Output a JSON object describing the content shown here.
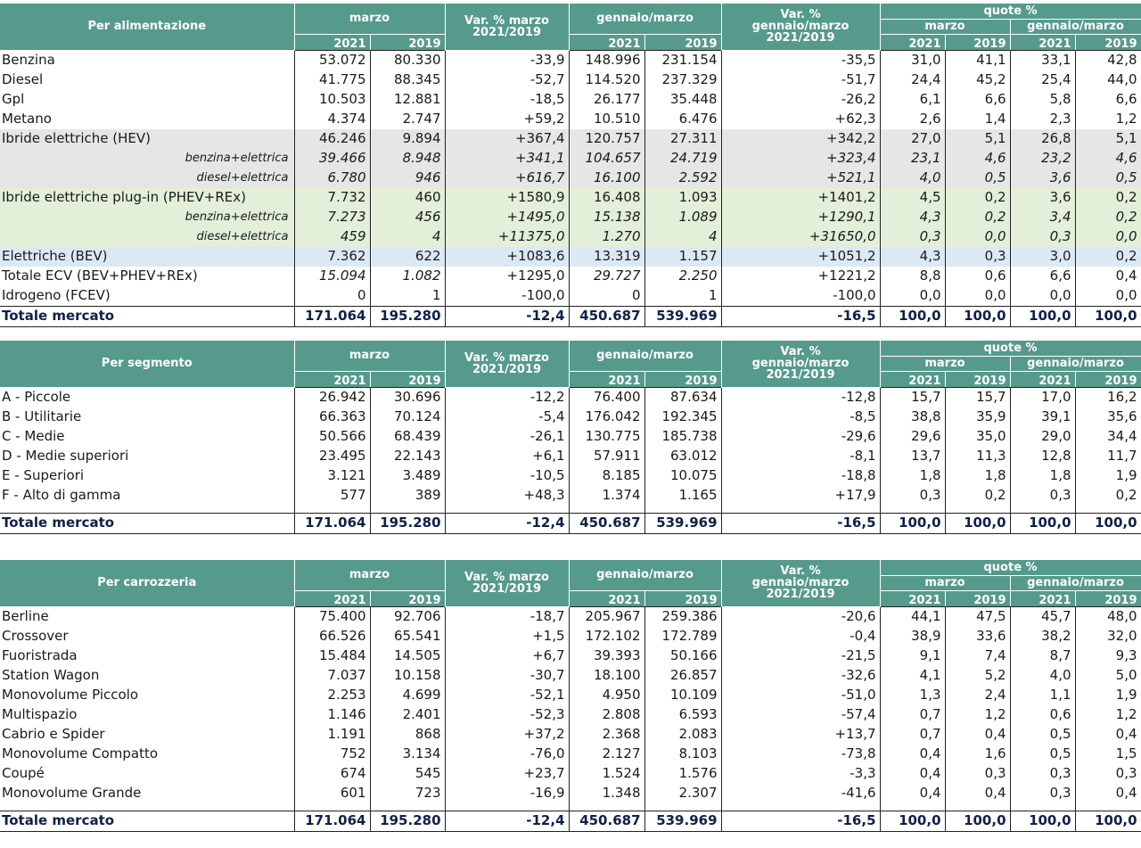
{
  "headers": {
    "march": "marzo",
    "var_march_l1": "Var. % marzo",
    "var_march_l2": "2021/2019",
    "jan_march": "gennaio/marzo",
    "var_jm_l1": "Var. %",
    "var_jm_l2": "gennaio/marzo",
    "var_jm_l3": "2021/2019",
    "shares": "quote %",
    "y2021": "2021",
    "y2019": "2019"
  },
  "tables": [
    {
      "title": "Per alimentazione",
      "rows": [
        {
          "label": "Benzina",
          "m21": "53.072",
          "m19": "80.330",
          "vm": "-33,9",
          "j21": "148.996",
          "j19": "231.154",
          "vj": "-35,5",
          "qm21": "31,0",
          "qm19": "41,1",
          "qj21": "33,1",
          "qj19": "42,8",
          "style": ""
        },
        {
          "label": "Diesel",
          "m21": "41.775",
          "m19": "88.345",
          "vm": "-52,7",
          "j21": "114.520",
          "j19": "237.329",
          "vj": "-51,7",
          "qm21": "24,4",
          "qm19": "45,2",
          "qj21": "25,4",
          "qj19": "44,0",
          "style": ""
        },
        {
          "label": "Gpl",
          "m21": "10.503",
          "m19": "12.881",
          "vm": "-18,5",
          "j21": "26.177",
          "j19": "35.448",
          "vj": "-26,2",
          "qm21": "6,1",
          "qm19": "6,6",
          "qj21": "5,8",
          "qj19": "6,6",
          "style": ""
        },
        {
          "label": "Metano",
          "m21": "4.374",
          "m19": "2.747",
          "vm": "+59,2",
          "j21": "10.510",
          "j19": "6.476",
          "vj": "+62,3",
          "qm21": "2,6",
          "qm19": "1,4",
          "qj21": "2,3",
          "qj19": "1,2",
          "style": ""
        },
        {
          "label": "Ibride elettriche (HEV)",
          "m21": "46.246",
          "m19": "9.894",
          "vm": "+367,4",
          "j21": "120.757",
          "j19": "27.311",
          "vj": "+342,2",
          "qm21": "27,0",
          "qm19": "5,1",
          "qj21": "26,8",
          "qj19": "5,1",
          "style": "gray"
        },
        {
          "label": "benzina+elettrica",
          "m21": "39.466",
          "m19": "8.948",
          "vm": "+341,1",
          "j21": "104.657",
          "j19": "24.719",
          "vj": "+323,4",
          "qm21": "23,1",
          "qm19": "4,6",
          "qj21": "23,2",
          "qj19": "4,6",
          "style": "gray italic sub"
        },
        {
          "label": "diesel+elettrica",
          "m21": "6.780",
          "m19": "946",
          "vm": "+616,7",
          "j21": "16.100",
          "j19": "2.592",
          "vj": "+521,1",
          "qm21": "4,0",
          "qm19": "0,5",
          "qj21": "3,6",
          "qj19": "0,5",
          "style": "gray italic sub"
        },
        {
          "label": "Ibride elettriche plug-in (PHEV+REx)",
          "m21": "7.732",
          "m19": "460",
          "vm": "+1580,9",
          "j21": "16.408",
          "j19": "1.093",
          "vj": "+1401,2",
          "qm21": "4,5",
          "qm19": "0,2",
          "qj21": "3,6",
          "qj19": "0,2",
          "style": "green"
        },
        {
          "label": "benzina+elettrica",
          "m21": "7.273",
          "m19": "456",
          "vm": "+1495,0",
          "j21": "15.138",
          "j19": "1.089",
          "vj": "+1290,1",
          "qm21": "4,3",
          "qm19": "0,2",
          "qj21": "3,4",
          "qj19": "0,2",
          "style": "green italic sub"
        },
        {
          "label": "diesel+elettrica",
          "m21": "459",
          "m19": "4",
          "vm": "+11375,0",
          "j21": "1.270",
          "j19": "4",
          "vj": "+31650,0",
          "qm21": "0,3",
          "qm19": "0,0",
          "qj21": "0,3",
          "qj19": "0,0",
          "style": "green italic sub"
        },
        {
          "label": "Elettriche (BEV)",
          "m21": "7.362",
          "m19": "622",
          "vm": "+1083,6",
          "j21": "13.319",
          "j19": "1.157",
          "vj": "+1051,2",
          "qm21": "4,3",
          "qm19": "0,3",
          "qj21": "3,0",
          "qj19": "0,2",
          "style": "blue"
        },
        {
          "label": "Totale ECV (BEV+PHEV+REx)",
          "m21": "15.094",
          "m19": "1.082",
          "vm": "+1295,0",
          "j21": "29.727",
          "j19": "2.250",
          "vj": "+1221,2",
          "qm21": "8,8",
          "qm19": "0,6",
          "qj21": "6,6",
          "qj19": "0,4",
          "style": "ecv"
        },
        {
          "label": "Idrogeno (FCEV)",
          "m21": "0",
          "m19": "1",
          "vm": "-100,0",
          "j21": "0",
          "j19": "1",
          "vj": "-100,0",
          "qm21": "0,0",
          "qm19": "0,0",
          "qj21": "0,0",
          "qj19": "0,0",
          "style": ""
        },
        {
          "label": "Totale mercato",
          "m21": "171.064",
          "m19": "195.280",
          "vm": "-12,4",
          "j21": "450.687",
          "j19": "539.969",
          "vj": "-16,5",
          "qm21": "100,0",
          "qm19": "100,0",
          "qj21": "100,0",
          "qj19": "100,0",
          "style": "bold"
        }
      ]
    },
    {
      "title": "Per segmento",
      "rows": [
        {
          "label": "A - Piccole",
          "m21": "26.942",
          "m19": "30.696",
          "vm": "-12,2",
          "j21": "76.400",
          "j19": "87.634",
          "vj": "-12,8",
          "qm21": "15,7",
          "qm19": "15,7",
          "qj21": "17,0",
          "qj19": "16,2",
          "style": ""
        },
        {
          "label": "B - Utilitarie",
          "m21": "66.363",
          "m19": "70.124",
          "vm": "-5,4",
          "j21": "176.042",
          "j19": "192.345",
          "vj": "-8,5",
          "qm21": "38,8",
          "qm19": "35,9",
          "qj21": "39,1",
          "qj19": "35,6",
          "style": ""
        },
        {
          "label": "C - Medie",
          "m21": "50.566",
          "m19": "68.439",
          "vm": "-26,1",
          "j21": "130.775",
          "j19": "185.738",
          "vj": "-29,6",
          "qm21": "29,6",
          "qm19": "35,0",
          "qj21": "29,0",
          "qj19": "34,4",
          "style": ""
        },
        {
          "label": "D - Medie superiori",
          "m21": "23.495",
          "m19": "22.143",
          "vm": "+6,1",
          "j21": "57.911",
          "j19": "63.012",
          "vj": "-8,1",
          "qm21": "13,7",
          "qm19": "11,3",
          "qj21": "12,8",
          "qj19": "11,7",
          "style": ""
        },
        {
          "label": "E - Superiori",
          "m21": "3.121",
          "m19": "3.489",
          "vm": "-10,5",
          "j21": "8.185",
          "j19": "10.075",
          "vj": "-18,8",
          "qm21": "1,8",
          "qm19": "1,8",
          "qj21": "1,8",
          "qj19": "1,9",
          "style": ""
        },
        {
          "label": "F - Alto di gamma",
          "m21": "577",
          "m19": "389",
          "vm": "+48,3",
          "j21": "1.374",
          "j19": "1.165",
          "vj": "+17,9",
          "qm21": "0,3",
          "qm19": "0,2",
          "qj21": "0,3",
          "qj19": "0,2",
          "style": ""
        },
        {
          "label": "Totale mercato",
          "m21": "171.064",
          "m19": "195.280",
          "vm": "-12,4",
          "j21": "450.687",
          "j19": "539.969",
          "vj": "-16,5",
          "qm21": "100,0",
          "qm19": "100,0",
          "qj21": "100,0",
          "qj19": "100,0",
          "style": "bold"
        }
      ]
    },
    {
      "title": "Per carrozzeria",
      "rows": [
        {
          "label": "Berline",
          "m21": "75.400",
          "m19": "92.706",
          "vm": "-18,7",
          "j21": "205.967",
          "j19": "259.386",
          "vj": "-20,6",
          "qm21": "44,1",
          "qm19": "47,5",
          "qj21": "45,7",
          "qj19": "48,0",
          "style": ""
        },
        {
          "label": "Crossover",
          "m21": "66.526",
          "m19": "65.541",
          "vm": "+1,5",
          "j21": "172.102",
          "j19": "172.789",
          "vj": "-0,4",
          "qm21": "38,9",
          "qm19": "33,6",
          "qj21": "38,2",
          "qj19": "32,0",
          "style": ""
        },
        {
          "label": "Fuoristrada",
          "m21": "15.484",
          "m19": "14.505",
          "vm": "+6,7",
          "j21": "39.393",
          "j19": "50.166",
          "vj": "-21,5",
          "qm21": "9,1",
          "qm19": "7,4",
          "qj21": "8,7",
          "qj19": "9,3",
          "style": ""
        },
        {
          "label": "Station Wagon",
          "m21": "7.037",
          "m19": "10.158",
          "vm": "-30,7",
          "j21": "18.100",
          "j19": "26.857",
          "vj": "-32,6",
          "qm21": "4,1",
          "qm19": "5,2",
          "qj21": "4,0",
          "qj19": "5,0",
          "style": ""
        },
        {
          "label": "Monovolume Piccolo",
          "m21": "2.253",
          "m19": "4.699",
          "vm": "-52,1",
          "j21": "4.950",
          "j19": "10.109",
          "vj": "-51,0",
          "qm21": "1,3",
          "qm19": "2,4",
          "qj21": "1,1",
          "qj19": "1,9",
          "style": ""
        },
        {
          "label": "Multispazio",
          "m21": "1.146",
          "m19": "2.401",
          "vm": "-52,3",
          "j21": "2.808",
          "j19": "6.593",
          "vj": "-57,4",
          "qm21": "0,7",
          "qm19": "1,2",
          "qj21": "0,6",
          "qj19": "1,2",
          "style": ""
        },
        {
          "label": "Cabrio e Spider",
          "m21": "1.191",
          "m19": "868",
          "vm": "+37,2",
          "j21": "2.368",
          "j19": "2.083",
          "vj": "+13,7",
          "qm21": "0,7",
          "qm19": "0,4",
          "qj21": "0,5",
          "qj19": "0,4",
          "style": ""
        },
        {
          "label": "Monovolume Compatto",
          "m21": "752",
          "m19": "3.134",
          "vm": "-76,0",
          "j21": "2.127",
          "j19": "8.103",
          "vj": "-73,8",
          "qm21": "0,4",
          "qm19": "1,6",
          "qj21": "0,5",
          "qj19": "1,5",
          "style": ""
        },
        {
          "label": "Coupé",
          "m21": "674",
          "m19": "545",
          "vm": "+23,7",
          "j21": "1.524",
          "j19": "1.576",
          "vj": "-3,3",
          "qm21": "0,4",
          "qm19": "0,3",
          "qj21": "0,3",
          "qj19": "0,3",
          "style": ""
        },
        {
          "label": "Monovolume Grande",
          "m21": "601",
          "m19": "723",
          "vm": "-16,9",
          "j21": "1.348",
          "j19": "2.307",
          "vj": "-41,6",
          "qm21": "0,4",
          "qm19": "0,4",
          "qj21": "0,3",
          "qj19": "0,4",
          "style": ""
        },
        {
          "label": "Totale mercato",
          "m21": "171.064",
          "m19": "195.280",
          "vm": "-12,4",
          "j21": "450.687",
          "j19": "539.969",
          "vj": "-16,5",
          "qm21": "100,0",
          "qm19": "100,0",
          "qj21": "100,0",
          "qj19": "100,0",
          "style": "bold"
        }
      ]
    }
  ]
}
